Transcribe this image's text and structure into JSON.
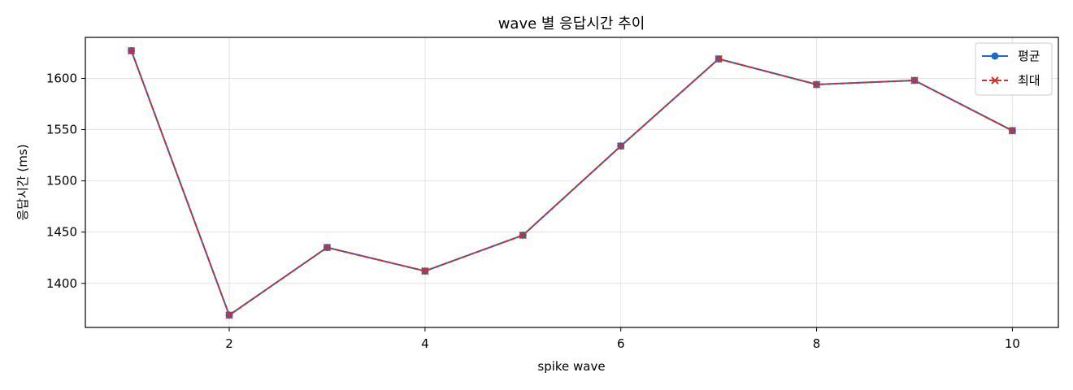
{
  "chart_data": {
    "type": "line",
    "title": "wave 별 응답시간 추이",
    "xlabel": "spike wave",
    "ylabel": "응답시간 (ms)",
    "xlim": [
      0.53,
      10.47
    ],
    "ylim": [
      1357,
      1640
    ],
    "xticks": [
      2,
      4,
      6,
      8,
      10
    ],
    "yticks": [
      1400,
      1450,
      1500,
      1550,
      1600
    ],
    "grid": true,
    "legend_position": "top-right",
    "x": [
      1,
      2,
      3,
      4,
      5,
      6,
      7,
      8,
      9,
      10
    ],
    "series": [
      {
        "name": "평균",
        "color": "#1f6ac2",
        "marker": "circle",
        "linestyle": "solid",
        "values": [
          1627,
          1369,
          1435,
          1412,
          1447,
          1534,
          1619,
          1594,
          1598,
          1549
        ]
      },
      {
        "name": "최대",
        "color": "#c83232",
        "marker": "x",
        "linestyle": "dashed",
        "values": [
          1627,
          1369,
          1435,
          1412,
          1447,
          1534,
          1619,
          1594,
          1598,
          1549
        ]
      }
    ]
  }
}
